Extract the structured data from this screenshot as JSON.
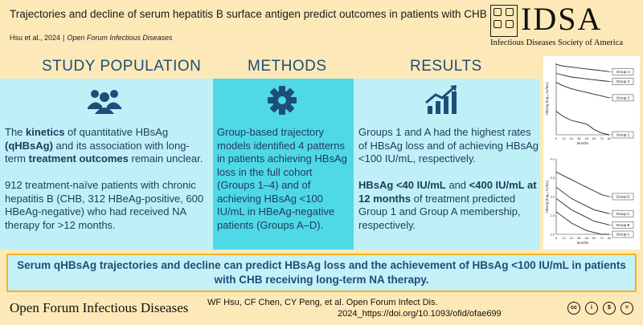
{
  "header": {
    "title": "Trajectories and decline of serum hepatitis B surface antigen predict outcomes in patients with CHB",
    "authors": "Hsu et al., 2024",
    "separator": "|",
    "journal": "Open Forum Infectious Diseases"
  },
  "logo": {
    "wordmark": "IDSA",
    "subtitle": "Infectious Diseases Society of America"
  },
  "columns": {
    "population": {
      "title": "STUDY POPULATION",
      "icon": "people-icon",
      "p1_a": "The ",
      "p1_b": "kinetics",
      "p1_c": " of quantitative HBsAg ",
      "p1_d": "(qHBsAg)",
      "p1_e": " and its association with long-term ",
      "p1_f": "treatment outcomes",
      "p1_g": " remain unclear.",
      "p2": "912 treatment-naïve patients with chronic hepatitis B (CHB, 312 HBeAg-positive, 600 HBeAg-negative) who had received NA therapy for >12 months."
    },
    "methods": {
      "title": "METHODS",
      "icon": "gear-icon",
      "text": "Group-based trajectory models identified 4 patterns in patients achieving HBsAg loss in the full cohort (Groups 1–4) and of achieving HBsAg <100 IU/mL in HBeAg-negative patients (Groups A–D)."
    },
    "results": {
      "title": "RESULTS",
      "icon": "growth-chart-icon",
      "p1": "Groups 1 and A had the highest rates of HBsAg loss and of achieving HBsAg <100 IU/mL, respectively.",
      "p2_a": "HBsAg <40 IU/mL",
      "p2_b": " and ",
      "p2_c": "<400 IU/mL at 12 months",
      "p2_d": " of treatment predicted Group 1 and Group A membership, respectively."
    }
  },
  "chart_data": [
    {
      "type": "line",
      "ylabel": "HBsAg (log₁₀ IU/mL)",
      "xlabel": "Months",
      "x": [
        0,
        12,
        24,
        36,
        48,
        60,
        72,
        84
      ],
      "series": [
        {
          "name": "Group 4",
          "values": [
            3.9,
            3.8,
            3.75,
            3.7,
            3.65,
            3.6,
            3.55,
            3.5
          ]
        },
        {
          "name": "Group 3",
          "values": [
            3.4,
            3.3,
            3.2,
            3.15,
            3.1,
            3.05,
            3.0,
            2.95
          ]
        },
        {
          "name": "Group 2",
          "values": [
            2.9,
            2.7,
            2.55,
            2.45,
            2.35,
            2.25,
            2.15,
            2.05
          ]
        },
        {
          "name": "Group 1",
          "values": [
            1.3,
            1.0,
            0.8,
            0.7,
            0.6,
            0.3,
            0.1,
            0.0
          ]
        }
      ],
      "xticks": [
        "0",
        "12",
        "24",
        "36",
        "48",
        "60",
        "72",
        "84"
      ]
    },
    {
      "type": "line",
      "ylabel": "HBsAg (log₁₀ IU/mL)",
      "xlabel": "Months",
      "x": [
        0,
        12,
        24,
        36,
        48,
        60,
        72,
        84
      ],
      "ylim": [
        2.0,
        4.0
      ],
      "yticks": [
        "2.0",
        "2.5",
        "3.0",
        "3.5",
        "4.0"
      ],
      "series": [
        {
          "name": "Group D",
          "values": [
            3.65,
            3.55,
            3.45,
            3.35,
            3.25,
            3.15,
            3.05,
            3.0
          ]
        },
        {
          "name": "Group C",
          "values": [
            3.25,
            3.1,
            2.95,
            2.85,
            2.75,
            2.65,
            2.6,
            2.55
          ]
        },
        {
          "name": "Group B",
          "values": [
            2.95,
            2.8,
            2.65,
            2.55,
            2.45,
            2.35,
            2.3,
            2.25
          ]
        },
        {
          "name": "Group A",
          "values": [
            2.6,
            2.45,
            2.3,
            2.2,
            2.1,
            2.05,
            2.0,
            2.0
          ]
        }
      ],
      "xticks": [
        "0",
        "12",
        "24",
        "36",
        "48",
        "60",
        "72",
        "84"
      ]
    }
  ],
  "conclusion": "Serum qHBsAg trajectories and decline can predict HBsAg loss and the achievement of HBsAg <100 IU/mL in patients with CHB receiving long-term NA therapy.",
  "footer": {
    "journal": "Open Forum Infectious Diseases",
    "citation": "WF Hsu, CF Chen, CY Peng, et al. Open Forum Infect Dis.",
    "doi": "2024_https://doi.org/10.1093/ofid/ofae699",
    "license_icons": [
      "cc-icon",
      "by-icon",
      "nc-icon",
      "nd-icon"
    ],
    "license_labels": [
      "cc",
      "i",
      "$",
      "="
    ]
  }
}
